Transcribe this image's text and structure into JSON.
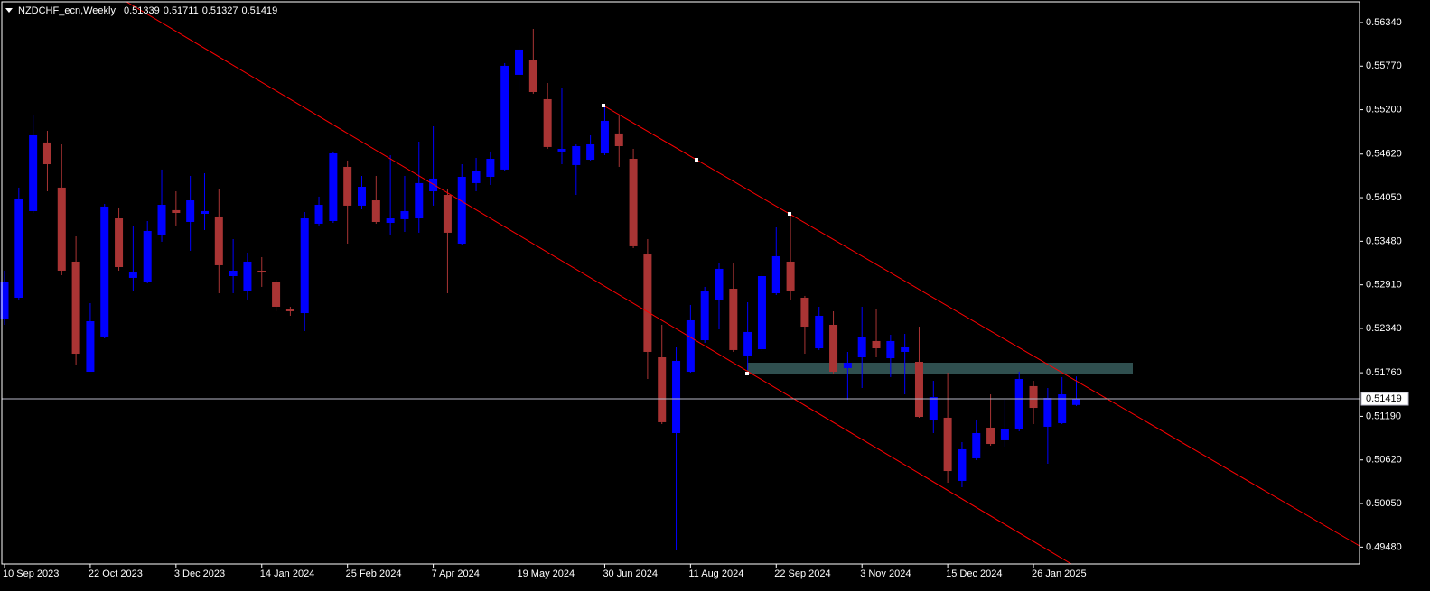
{
  "chart_data": {
    "type": "candlestick",
    "title": "NZDCHF_ecn,Weekly",
    "categories": [
      "10 Sep 2023",
      null,
      null,
      null,
      null,
      null,
      "22 Oct 2023",
      null,
      null,
      null,
      null,
      null,
      "3 Dec 2023",
      null,
      null,
      null,
      null,
      null,
      "14 Jan 2024",
      null,
      null,
      null,
      null,
      null,
      "25 Feb 2024",
      null,
      null,
      null,
      null,
      null,
      "7 Apr 2024",
      null,
      null,
      null,
      null,
      null,
      "19 May 2024",
      null,
      null,
      null,
      null,
      null,
      "30 Jun 2024",
      null,
      null,
      null,
      null,
      null,
      "11 Aug 2024",
      null,
      null,
      null,
      null,
      null,
      "22 Sep 2024",
      null,
      null,
      null,
      null,
      null,
      "3 Nov 2024",
      null,
      null,
      null,
      null,
      null,
      "15 Dec 2024",
      null,
      null,
      null,
      null,
      null,
      "26 Jan 2025",
      null,
      null,
      null
    ],
    "open": [
      0.52458,
      0.52741,
      0.53874,
      0.54771,
      0.54181,
      0.53213,
      0.51773,
      0.52234,
      0.53779,
      0.53001,
      0.52953,
      0.53567,
      0.53886,
      0.53732,
      0.53838,
      0.53803,
      0.53024,
      0.52835,
      0.53095,
      0.52953,
      0.52599,
      0.5254,
      0.53709,
      0.53744,
      0.54452,
      0.53945,
      0.54015,
      0.5372,
      0.53768,
      0.53779,
      0.54133,
      0.54086,
      0.53449,
      0.5424,
      0.54322,
      0.54417,
      0.55656,
      0.55844,
      0.55337,
      0.54653,
      0.54476,
      0.54546,
      0.54629,
      0.54889,
      0.54558,
      0.53307,
      0.51962,
      0.50971,
      0.51773,
      0.52186,
      0.52717,
      0.52859,
      0.51986,
      0.52068,
      0.528,
      0.53213,
      0.52741,
      0.5208,
      0.52387,
      0.51821,
      0.51962,
      0.52175,
      0.5195,
      0.52033,
      0.51903,
      0.51136,
      0.51172,
      0.50346,
      0.50641,
      0.51042,
      0.50877,
      0.51018,
      0.51585,
      0.51054,
      0.51101,
      0.51339
    ],
    "high": [
      0.53095,
      0.54181,
      0.55125,
      0.54924,
      0.54747,
      0.53543,
      0.5267,
      0.53968,
      0.53921,
      0.53685,
      0.53744,
      0.54417,
      0.54133,
      0.54334,
      0.54369,
      0.54157,
      0.53508,
      0.53331,
      0.53272,
      0.52977,
      0.52623,
      0.53862,
      0.54063,
      0.54653,
      0.54535,
      0.54334,
      0.54334,
      0.54605,
      0.54334,
      0.54782,
      0.54983,
      0.54157,
      0.54487,
      0.5457,
      0.54653,
      0.55809,
      0.56045,
      0.56257,
      0.55549,
      0.5549,
      0.54747,
      0.54865,
      0.55254,
      0.55125,
      0.54688,
      0.53508,
      0.52387,
      0.52092,
      0.52647,
      0.52883,
      0.53189,
      0.53189,
      0.52682,
      0.53071,
      0.53661,
      0.53827,
      0.52765,
      0.52623,
      0.52564,
      0.52033,
      0.52623,
      0.52599,
      0.52257,
      0.52269,
      0.52363,
      0.51655,
      0.51762,
      0.50853,
      0.51148,
      0.51478,
      0.51408,
      0.51773,
      0.51655,
      0.51561,
      0.51703,
      0.51711
    ],
    "low": [
      0.52387,
      0.52717,
      0.5385,
      0.54133,
      0.53036,
      0.51856,
      0.51773,
      0.5221,
      0.53095,
      0.52824,
      0.5293,
      0.53473,
      0.53685,
      0.53355,
      0.53626,
      0.528,
      0.528,
      0.52706,
      0.52883,
      0.52564,
      0.52505,
      0.52304,
      0.53685,
      0.5372,
      0.53449,
      0.53897,
      0.53709,
      0.53567,
      0.53602,
      0.53591,
      0.53945,
      0.528,
      0.53425,
      0.54133,
      0.54216,
      0.54393,
      0.55431,
      0.55408,
      0.54688,
      0.54487,
      0.54086,
      0.54535,
      0.54605,
      0.54452,
      0.5339,
      0.51679,
      0.51089,
      0.49437,
      0.51762,
      0.52151,
      0.52328,
      0.52033,
      0.51797,
      0.52045,
      0.52776,
      0.52706,
      0.52009,
      0.52057,
      0.5175,
      0.51408,
      0.51561,
      0.51962,
      0.51703,
      0.51478,
      0.51172,
      0.50971,
      0.50322,
      0.50263,
      0.50617,
      0.50806,
      0.50794,
      0.50995,
      0.51089,
      0.5057,
      0.51089,
      0.51327
    ],
    "close": [
      0.52953,
      0.54039,
      0.54865,
      0.54487,
      0.53095,
      0.52009,
      0.52434,
      0.53933,
      0.53142,
      0.53071,
      0.53614,
      0.53956,
      0.5385,
      0.54015,
      0.53874,
      0.53166,
      0.53095,
      0.53213,
      0.53071,
      0.52623,
      0.52564,
      0.53779,
      0.53956,
      0.54629,
      0.53945,
      0.54192,
      0.53732,
      0.53779,
      0.53874,
      0.5424,
      0.54299,
      0.53591,
      0.54322,
      0.54393,
      0.54558,
      0.55774,
      0.55986,
      0.55431,
      0.54712,
      0.54688,
      0.54723,
      0.54747,
      0.55054,
      0.54723,
      0.53414,
      0.52033,
      0.51113,
      0.51915,
      0.52446,
      0.52835,
      0.53119,
      0.52057,
      0.52293,
      0.53024,
      0.53284,
      0.52835,
      0.52363,
      0.52505,
      0.51773,
      0.51891,
      0.52222,
      0.5208,
      0.52175,
      0.52092,
      0.51183,
      0.51443,
      0.50475,
      0.50759,
      0.50971,
      0.50829,
      0.51018,
      0.51679,
      0.51301,
      0.51431,
      0.51478,
      0.51419
    ],
    "up_color": "#0000ff",
    "down_color": "#a93434",
    "ylim": [
      0.4926,
      0.56611
    ],
    "yticks": [
      {
        "value": 0.5634,
        "label": "0.56340"
      },
      {
        "value": 0.5577,
        "label": "0.55770"
      },
      {
        "value": 0.552,
        "label": "0.55200"
      },
      {
        "value": 0.5462,
        "label": "0.54620"
      },
      {
        "value": 0.5405,
        "label": "0.54050"
      },
      {
        "value": 0.5348,
        "label": "0.53480"
      },
      {
        "value": 0.5291,
        "label": "0.52910"
      },
      {
        "value": 0.5234,
        "label": "0.52340"
      },
      {
        "value": 0.5176,
        "label": "0.51760"
      },
      {
        "value": 0.5119,
        "label": "0.51190"
      },
      {
        "value": 0.5062,
        "label": "0.50620"
      },
      {
        "value": 0.5005,
        "label": "0.50050"
      },
      {
        "value": 0.4948,
        "label": "0.49480"
      }
    ]
  }
}
